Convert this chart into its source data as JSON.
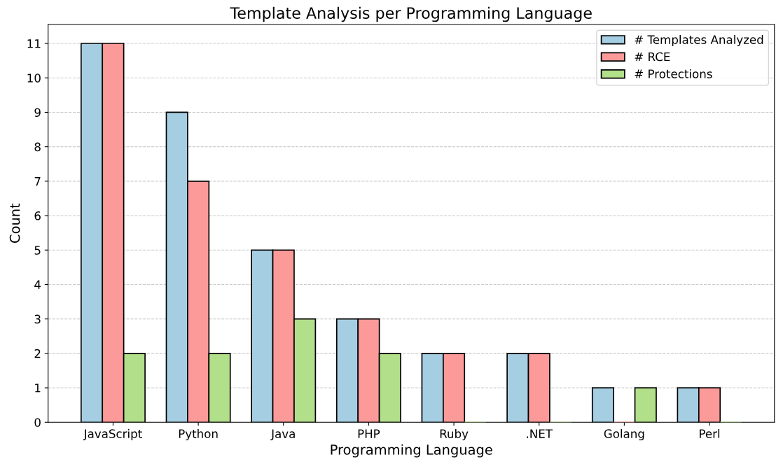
{
  "chart_data": {
    "type": "bar",
    "title": "Template Analysis per Programming Language",
    "xlabel": "Programming Language",
    "ylabel": "Count",
    "categories": [
      "JavaScript",
      "Python",
      "Java",
      "PHP",
      "Ruby",
      ".NET",
      "Golang",
      "Perl"
    ],
    "series": [
      {
        "name": "# Templates Analyzed",
        "color": "#a6cee3",
        "values": [
          11,
          9,
          5,
          3,
          2,
          2,
          1,
          1
        ]
      },
      {
        "name": "# RCE",
        "color": "#fb9a99",
        "values": [
          11,
          7,
          5,
          3,
          2,
          2,
          0,
          1
        ]
      },
      {
        "name": "# Protections",
        "color": "#b2df8a",
        "values": [
          2,
          2,
          3,
          2,
          0,
          0,
          1,
          0
        ]
      }
    ],
    "ylim": [
      0,
      11.55
    ],
    "yticks": [
      0,
      1,
      2,
      3,
      4,
      5,
      6,
      7,
      8,
      9,
      10,
      11
    ],
    "grid": "y",
    "legend": "top right"
  }
}
